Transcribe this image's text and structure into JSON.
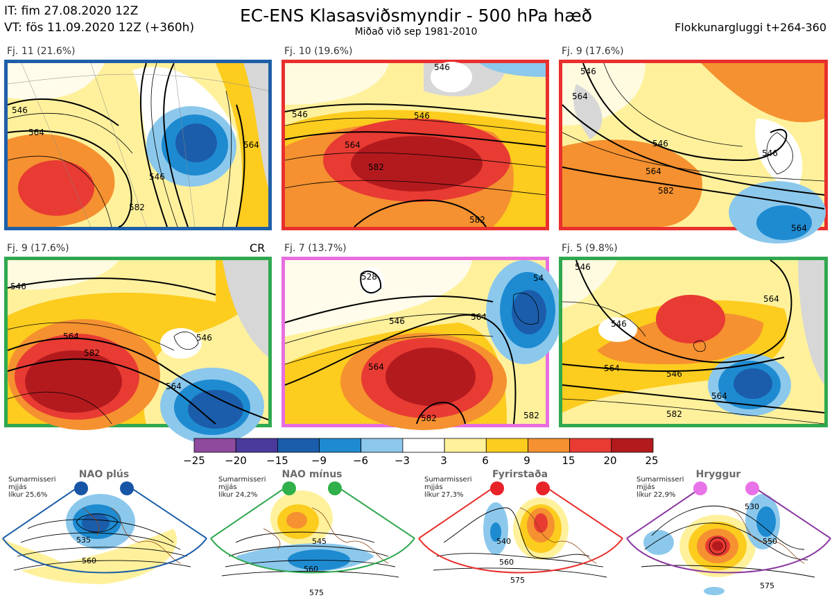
{
  "header": {
    "it_line": "IT: fim 27.08.2020 12Z",
    "vt_line": "VT: fös 11.09.2020 12Z  (+360h)",
    "title": "EC-ENS Klasasviðsmyndir - 500 hPa hæð",
    "subtitle": "Miðað við sep 1981-2010",
    "window": "Flokkunargluggi t+264-360"
  },
  "panels": [
    {
      "label": "Fj. 11 (21.6%)",
      "border": "#1f5fa8",
      "extra": "",
      "contours": [
        "546",
        "564",
        "582",
        "546",
        "564"
      ]
    },
    {
      "label": "Fj. 10 (19.6%)",
      "border": "#e8302e",
      "extra": "",
      "contours": [
        "546",
        "546",
        "564",
        "582",
        "582",
        "546"
      ]
    },
    {
      "label": "Fj. 9 (17.6%)",
      "border": "#e8302e",
      "extra": "",
      "contours": [
        "564",
        "546",
        "564",
        "582",
        "546",
        "546",
        "564"
      ]
    },
    {
      "label": "Fj. 9 (17.6%)",
      "border": "#2fa84f",
      "extra": "CR",
      "contours": [
        "546",
        "564",
        "582",
        "546",
        "564"
      ]
    },
    {
      "label": "Fj. 7 (13.7%)",
      "border": "#e86ee0",
      "extra": "",
      "contours": [
        "528",
        "546",
        "564",
        "564",
        "582",
        "582",
        "54"
      ]
    },
    {
      "label": "Fj. 5 (9.8%)",
      "border": "#2fa84f",
      "extra": "",
      "contours": [
        "546",
        "546",
        "564",
        "546",
        "564",
        "582",
        "564"
      ]
    }
  ],
  "colorbar": {
    "ticks": [
      "−25",
      "−20",
      "−15",
      "−9",
      "−6",
      "−3",
      "3",
      "6",
      "9",
      "15",
      "20",
      "25"
    ],
    "colors": [
      "#8e4b9e",
      "#4a3a9c",
      "#1b5dab",
      "#1e8bd1",
      "#8cc8ec",
      "#ffffff",
      "#fff19c",
      "#fccc1f",
      "#f59130",
      "#e83b33",
      "#b31a1e"
    ]
  },
  "regimes": [
    {
      "title": "NAO plús",
      "note_lines": [
        "Sumarmisseri",
        "mjjás",
        "líkur 25,6%"
      ],
      "border": "#1f5fa8",
      "dot": "#1756a6",
      "contours": [
        "535",
        "560"
      ]
    },
    {
      "title": "NAO mínus",
      "note_lines": [
        "Sumarmisseri",
        "mjjás",
        "líkur 24,2%"
      ],
      "border": "#2fa84f",
      "dot": "#2fb04a",
      "contours": [
        "545",
        "560",
        "575"
      ]
    },
    {
      "title": "Fyrirstaða",
      "note_lines": [
        "Sumarmisseri",
        "mjjás",
        "líkur 27,3%"
      ],
      "border": "#e8302e",
      "dot": "#e8232a",
      "contours": [
        "540",
        "560",
        "575"
      ]
    },
    {
      "title": "Hryggur",
      "note_lines": [
        "Sumarmisseri",
        "mjjás",
        "líkur 22,9%"
      ],
      "border": "#8a3aa0",
      "dot": "#e873e8",
      "contours": [
        "530",
        "550",
        "575"
      ]
    }
  ]
}
